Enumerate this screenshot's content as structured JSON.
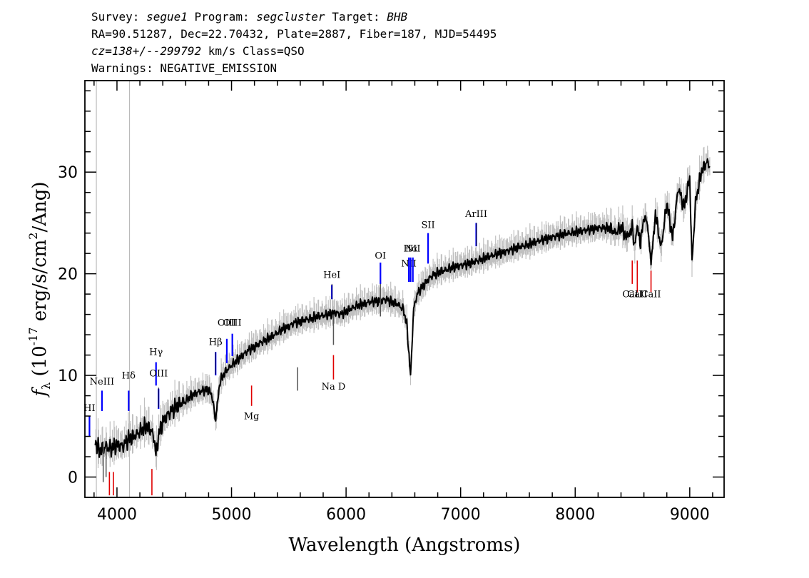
{
  "header": {
    "survey_label": "Survey:",
    "survey": "segue1",
    "program_label": "Program:",
    "program": "segcluster",
    "target_label": "Target:",
    "target": "BHB",
    "coords": "RA=90.51287, Dec=22.70432, Plate=2887, Fiber=187, MJD=54495",
    "cz": "cz=138+/--299792",
    "cz_unit": "km/s Class=QSO",
    "warnings": "Warnings: NEGATIVE_EMISSION"
  },
  "colors": {
    "flux": "#000000",
    "error": "#c0c0c0",
    "emission": "#0000ff",
    "absorption": "#e00000",
    "sky": "#000000"
  },
  "chart_data": {
    "type": "line",
    "xlabel": "Wavelength (Angstroms)",
    "ylabel": "f_λ (10^-17 erg/s/cm^2/Ang)",
    "xlim": [
      3720,
      9300
    ],
    "ylim": [
      -2,
      39
    ],
    "xticks": [
      4000,
      5000,
      6000,
      7000,
      8000,
      9000
    ],
    "yticks": [
      0,
      10,
      20,
      30
    ],
    "grid": false,
    "series": [
      {
        "x": [
          3810,
          3850,
          3900,
          3950,
          4000,
          4050,
          4100,
          4150,
          4200,
          4250,
          4300,
          4330,
          4340,
          4360,
          4400,
          4450,
          4500,
          4550,
          4600,
          4650,
          4700,
          4750,
          4800,
          4830,
          4850,
          4862,
          4880,
          4900,
          4950,
          5000,
          5050,
          5100,
          5150,
          5200,
          5250,
          5300,
          5350,
          5400,
          5450,
          5500,
          5550,
          5600,
          5650,
          5700,
          5750,
          5800,
          5850,
          5900,
          5950,
          6000,
          6050,
          6100,
          6150,
          6200,
          6250,
          6300,
          6350,
          6400,
          6450,
          6500,
          6530,
          6550,
          6563,
          6575,
          6590,
          6620,
          6650,
          6700,
          6750,
          6800,
          6850,
          6900,
          6950,
          7000,
          7100,
          7200,
          7300,
          7400,
          7500,
          7600,
          7700,
          7800,
          7900,
          8000,
          8100,
          8200,
          8300,
          8350,
          8400,
          8450,
          8498,
          8520,
          8542,
          8570,
          8600,
          8630,
          8662,
          8700,
          8750,
          8800,
          8850,
          8900,
          8950,
          9000,
          9020,
          9050,
          9100,
          9150,
          9180
        ],
        "values": [
          3.5,
          2.5,
          3.0,
          2.8,
          3.2,
          3.0,
          3.8,
          4.0,
          4.5,
          5.0,
          4.6,
          3.5,
          2.0,
          4.0,
          5.5,
          6.2,
          6.8,
          7.2,
          7.5,
          8.0,
          8.3,
          8.5,
          8.6,
          8.0,
          6.5,
          5.5,
          7.5,
          9.5,
          10.4,
          11.0,
          11.5,
          12.0,
          12.5,
          12.8,
          13.2,
          13.5,
          13.8,
          14.2,
          14.6,
          14.8,
          15.2,
          15.3,
          15.5,
          15.6,
          15.8,
          15.9,
          16.0,
          16.2,
          16.0,
          16.3,
          16.6,
          16.9,
          17.0,
          17.2,
          17.3,
          17.3,
          17.5,
          17.2,
          17.0,
          16.5,
          15.0,
          12.0,
          10.0,
          13.0,
          16.5,
          18.0,
          18.5,
          19.2,
          19.8,
          20.1,
          20.3,
          20.5,
          20.7,
          20.8,
          21.1,
          21.5,
          21.9,
          22.2,
          22.6,
          22.9,
          23.3,
          23.6,
          23.9,
          24.1,
          24.3,
          24.5,
          24.5,
          24.0,
          24.6,
          23.5,
          24.8,
          22.5,
          25.0,
          23.0,
          25.6,
          25.0,
          21.0,
          26.0,
          22.5,
          27.0,
          23.5,
          28.5,
          26.5,
          29.5,
          21.0,
          27.0,
          30.0,
          31.0,
          30.5
        ]
      }
    ],
    "line_markers": [
      {
        "label": "NeIII",
        "wave": 3869,
        "type": "emission",
        "lbl_y": 9.1,
        "y0": 6.5,
        "y1": 8.5
      },
      {
        "label": "Hδ",
        "wave": 4102,
        "type": "emission",
        "lbl_y": 9.7,
        "y0": 6.5,
        "y1": 8.5
      },
      {
        "label": "Hγ",
        "wave": 4341,
        "type": "emission",
        "lbl_y": 12.0,
        "y0": 9.0,
        "y1": 11.3
      },
      {
        "label": "OIII",
        "wave": 4363,
        "type": "emission",
        "lbl_y": 9.9,
        "y0": 6.7,
        "y1": 8.7
      },
      {
        "label": "Hβ",
        "wave": 4861,
        "type": "emission",
        "lbl_y": 13.0,
        "y0": 10.0,
        "y1": 12.3
      },
      {
        "label": "OIII",
        "wave": 4959,
        "type": "emission",
        "lbl_y": 14.9,
        "y0": 11.2,
        "y1": 13.6
      },
      {
        "label": "OIII",
        "wave": 5007,
        "type": "emission",
        "lbl_y": 14.9,
        "y0": 11.9,
        "y1": 14.1
      },
      {
        "label": "HeI",
        "wave": 5876,
        "type": "emission",
        "lbl_y": 19.6,
        "y0": 17.5,
        "y1": 18.9
      },
      {
        "label": "OI",
        "wave": 6300,
        "type": "emission",
        "lbl_y": 21.5,
        "y0": 19.0,
        "y1": 21.1
      },
      {
        "label": "NII",
        "wave": 6548,
        "type": "emission",
        "lbl_y": 20.7,
        "y0": 19.2,
        "y1": 21.6
      },
      {
        "label": "Hα",
        "wave": 6563,
        "type": "emission",
        "lbl_y": 22.2,
        "y0": 19.2,
        "y1": 21.6
      },
      {
        "label": "NII",
        "wave": 6583,
        "type": "emission",
        "lbl_y": 22.2,
        "y0": 19.2,
        "y1": 21.6
      },
      {
        "label": "SII",
        "wave": 6716,
        "type": "emission",
        "lbl_y": 24.5,
        "y0": 21.0,
        "y1": 24.0
      },
      {
        "label": "ArIII",
        "wave": 7136,
        "type": "emission",
        "lbl_y": 25.6,
        "y0": 22.7,
        "y1": 25.0
      },
      {
        "label": "Na D",
        "wave": 5890,
        "type": "absorption",
        "lbl_y": 8.6,
        "y0": 9.6,
        "y1": 12.0
      },
      {
        "label": "Mg",
        "wave": 5175,
        "type": "absorption",
        "lbl_y": 5.7,
        "y0": 7.0,
        "y1": 9.0
      },
      {
        "label": "CaII",
        "wave": 8542,
        "type": "absorption",
        "lbl_y": 17.7,
        "y0": 18.2,
        "y1": 21.3
      },
      {
        "label": "CaII",
        "wave": 8498,
        "type": "absorption",
        "lbl_y": 17.7,
        "y0": 19.0,
        "y1": 21.3
      },
      {
        "label": "CaII",
        "wave": 8662,
        "type": "absorption",
        "lbl_y": 17.7,
        "y0": 18.2,
        "y1": 20.3
      },
      {
        "label": "",
        "wave": 3934,
        "type": "absorption",
        "y0": -1.8,
        "y1": 0.5
      },
      {
        "label": "",
        "wave": 3969,
        "type": "absorption",
        "y0": -1.8,
        "y1": 0.5
      },
      {
        "label": "",
        "wave": 4305,
        "type": "absorption",
        "y0": -1.8,
        "y1": 0.8
      },
      {
        "label": "HI",
        "wave": 3760,
        "type": "emission",
        "lbl_y": 6.5,
        "y0": 4.0,
        "y1": 6.0
      }
    ]
  }
}
